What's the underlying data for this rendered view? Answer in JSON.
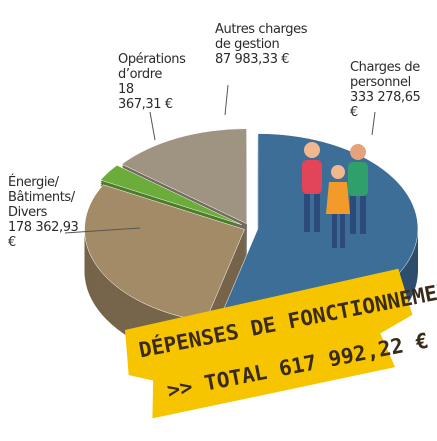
{
  "chart_data": {
    "type": "pie",
    "categories": [
      "Charges de personnel",
      "Énergie/ Bâtiments/ Divers",
      "Opérations d’ordre",
      "Autres charges de gestion"
    ],
    "values": [
      333278.65,
      178362.93,
      18367.31,
      87983.33
    ],
    "value_labels": [
      "333 278,65 €",
      "178 362,93 €",
      "18 367,31 €",
      "87 983,33 €"
    ],
    "colors": [
      "#3d6e98",
      "#a48b68",
      "#6cac3a",
      "#9f9482"
    ],
    "annotations": [
      "DÉPENSES DE FONCTIONNEMENT",
      ">> TOTAL 617 992,22 €"
    ]
  }
}
